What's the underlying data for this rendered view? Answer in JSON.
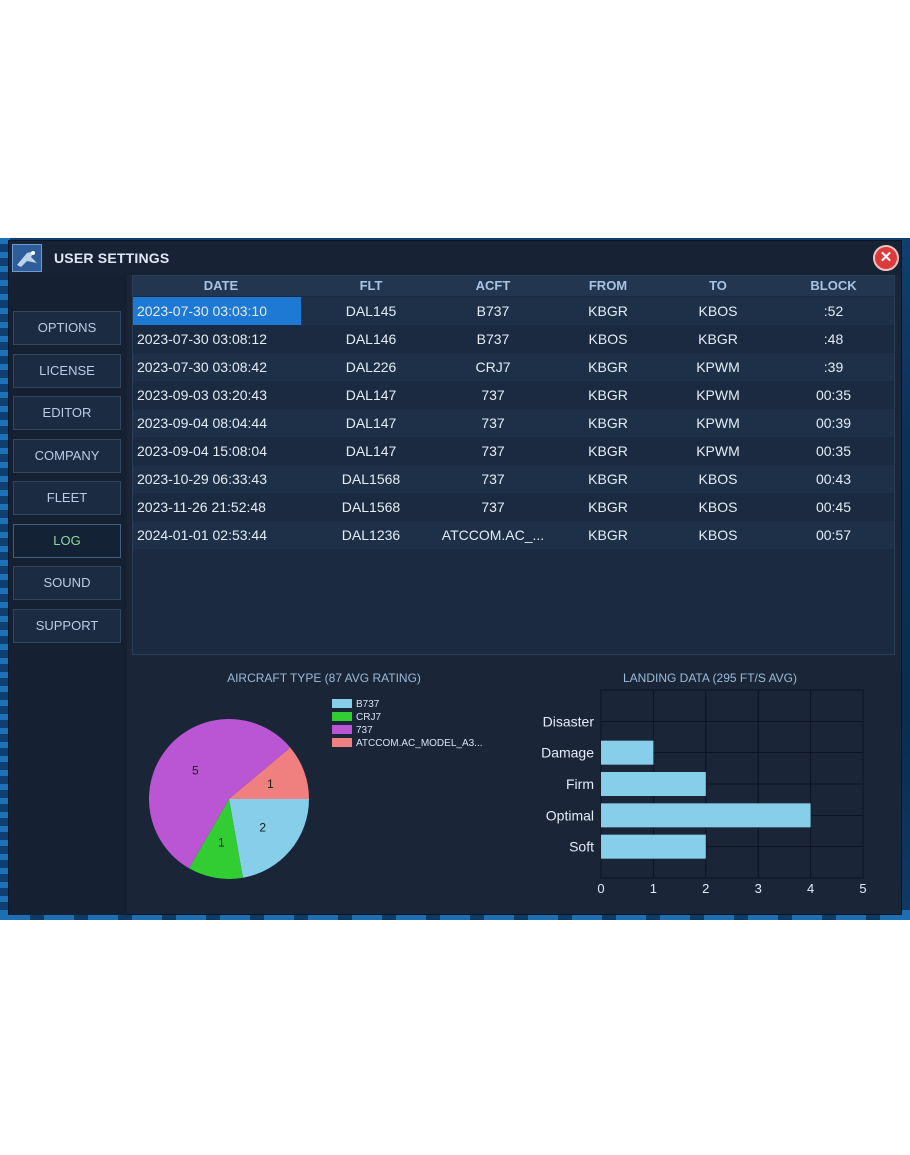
{
  "window": {
    "title": "USER SETTINGS",
    "close_label": "✕"
  },
  "sidebar": {
    "items": [
      {
        "label": "OPTIONS",
        "active": false
      },
      {
        "label": "LICENSE",
        "active": false
      },
      {
        "label": "EDITOR",
        "active": false
      },
      {
        "label": "COMPANY",
        "active": false
      },
      {
        "label": "FLEET",
        "active": false
      },
      {
        "label": "LOG",
        "active": true
      },
      {
        "label": "SOUND",
        "active": false
      },
      {
        "label": "SUPPORT",
        "active": false
      }
    ]
  },
  "log_table": {
    "columns": [
      "DATE",
      "FLT",
      "ACFT",
      "FROM",
      "TO",
      "BLOCK"
    ],
    "rows": [
      [
        "2023-07-30 03:03:10",
        "DAL145",
        "B737",
        "KBGR",
        "KBOS",
        ":52"
      ],
      [
        "2023-07-30 03:08:12",
        "DAL146",
        "B737",
        "KBOS",
        "KBGR",
        ":48"
      ],
      [
        "2023-07-30 03:08:42",
        "DAL226",
        "CRJ7",
        "KBGR",
        "KPWM",
        ":39"
      ],
      [
        "2023-09-03 03:20:43",
        "DAL147",
        "737",
        "KBGR",
        "KPWM",
        "00:35"
      ],
      [
        "2023-09-04 08:04:44",
        "DAL147",
        "737",
        "KBGR",
        "KPWM",
        "00:39"
      ],
      [
        "2023-09-04 15:08:04",
        "DAL147",
        "737",
        "KBGR",
        "KPWM",
        "00:35"
      ],
      [
        "2023-10-29 06:33:43",
        "DAL1568",
        "737",
        "KBGR",
        "KBOS",
        "00:43"
      ],
      [
        "2023-11-26 21:52:48",
        "DAL1568",
        "737",
        "KBGR",
        "KBOS",
        "00:45"
      ],
      [
        "2024-01-01 02:53:44",
        "DAL1236",
        "ATCCOM.AC_...",
        "KBGR",
        "KBOS",
        "00:57"
      ]
    ],
    "selected_row": 0
  },
  "colors": {
    "selection": "#1d79d4",
    "bar": "#87ceeb",
    "pie": {
      "B737": "#87ceeb",
      "CRJ7": "#32cd32",
      "737": "#ba55d3",
      "ATCCOM.AC_MODEL_A3...": "#f08080"
    }
  },
  "chart_data": [
    {
      "type": "pie",
      "title": "AIRCRAFT TYPE (87 AVG RATING)",
      "legend": "top-right",
      "categories": [
        "B737",
        "CRJ7",
        "737",
        "ATCCOM.AC_MODEL_A3..."
      ],
      "values": [
        2,
        1,
        5,
        1
      ],
      "colors": [
        "#87ceeb",
        "#32cd32",
        "#ba55d3",
        "#f08080"
      ],
      "data_labels": [
        "2",
        "1",
        "5",
        "1"
      ]
    },
    {
      "type": "bar",
      "orientation": "horizontal",
      "title": "LANDING DATA (295 FT/S AVG)",
      "categories": [
        "Disaster",
        "Damage",
        "Firm",
        "Optimal",
        "Soft"
      ],
      "values": [
        0,
        1,
        2,
        4,
        2
      ],
      "xlim": [
        0,
        5
      ],
      "xticks": [
        "0",
        "1",
        "2",
        "3",
        "4",
        "5"
      ],
      "grid": true,
      "color": "#87ceeb"
    }
  ]
}
